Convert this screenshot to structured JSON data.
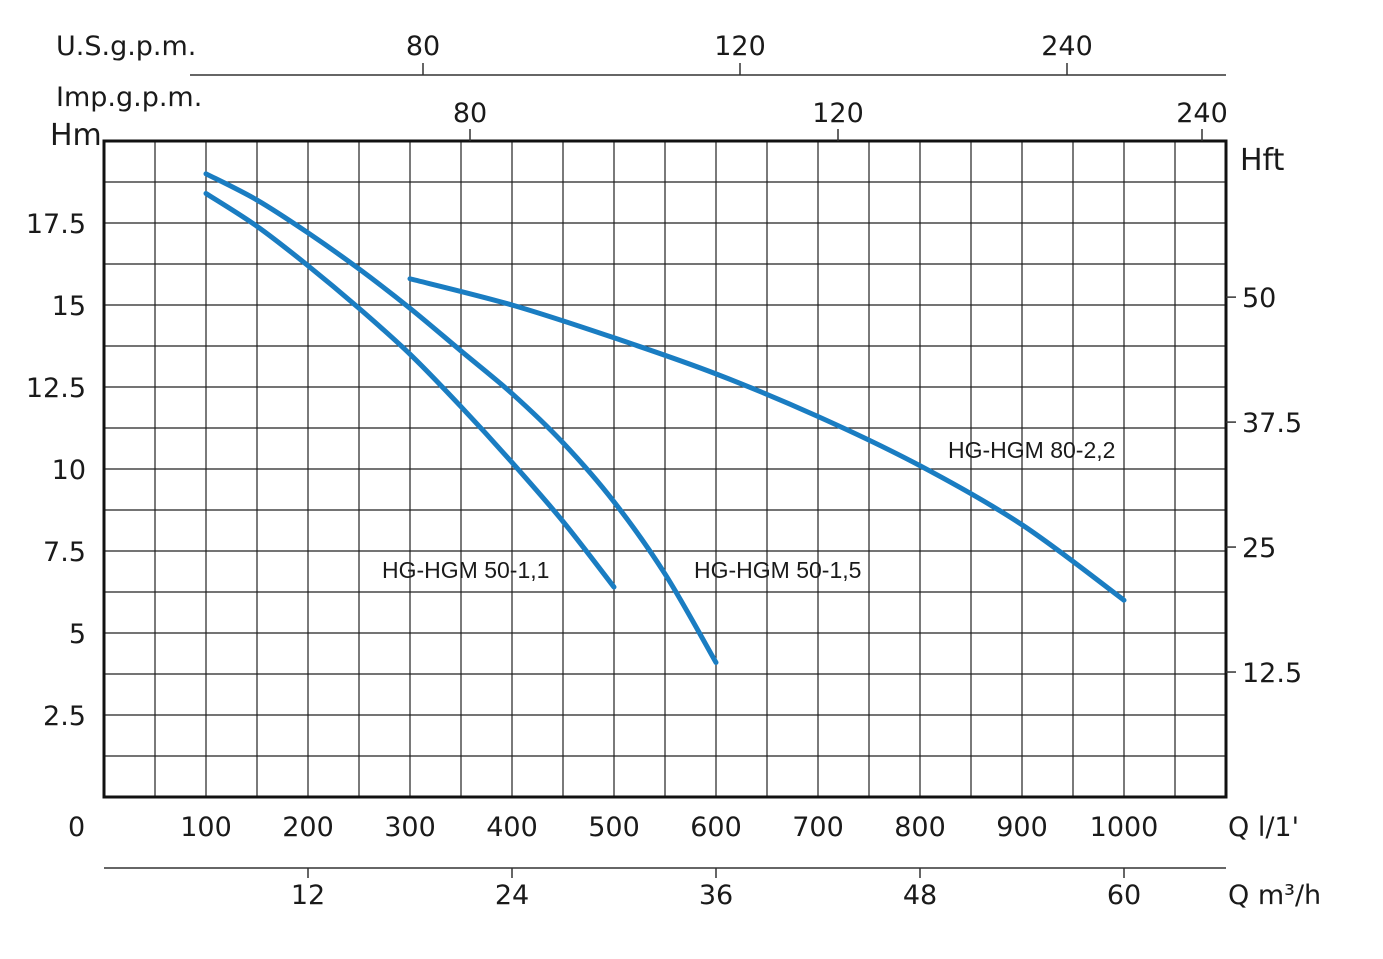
{
  "chart_data": {
    "type": "line",
    "x_axis": {
      "label": "Q l/1'",
      "ticks": [
        "100",
        "200",
        "300",
        "400",
        "500",
        "600",
        "700",
        "800",
        "900",
        "1000"
      ],
      "range": [
        0,
        1100
      ],
      "origin_label": "0"
    },
    "x_axis_m3h": {
      "label": "Q m³/h",
      "ticks": [
        "12",
        "24",
        "36",
        "48",
        "60"
      ]
    },
    "x_axis_us_gpm": {
      "label": "U.S.g.p.m.",
      "ticks": [
        "80",
        "120",
        "240"
      ]
    },
    "x_axis_imp_gpm": {
      "label": "Imp.g.p.m.",
      "ticks": [
        "80",
        "120",
        "240"
      ]
    },
    "y_axis": {
      "label": "Hm",
      "ticks": [
        "2.5",
        "5",
        "7.5",
        "10",
        "12.5",
        "15",
        "17.5"
      ],
      "range": [
        0,
        20
      ]
    },
    "y_axis_right": {
      "label": "Hft",
      "ticks": [
        "12.5",
        "25",
        "37.5",
        "50"
      ]
    },
    "grid": true,
    "line_color": "#1a7dc2",
    "series": [
      {
        "name": "HG-HGM 50-1,1",
        "x": [
          100,
          150,
          200,
          250,
          300,
          350,
          400,
          450,
          500
        ],
        "y": [
          18.4,
          17.4,
          16.2,
          14.9,
          13.5,
          11.9,
          10.2,
          8.4,
          6.4
        ]
      },
      {
        "name": "HG-HGM 50-1,5",
        "x": [
          100,
          150,
          200,
          250,
          300,
          350,
          400,
          450,
          500,
          550,
          600
        ],
        "y": [
          19.0,
          18.2,
          17.2,
          16.1,
          14.9,
          13.6,
          12.3,
          10.8,
          9.0,
          6.8,
          4.1
        ]
      },
      {
        "name": "HG-HGM 80-2,2",
        "x": [
          300,
          400,
          500,
          600,
          700,
          800,
          900,
          1000
        ],
        "y": [
          15.8,
          15.0,
          14.0,
          12.9,
          11.6,
          10.1,
          8.3,
          6.0
        ]
      }
    ]
  }
}
